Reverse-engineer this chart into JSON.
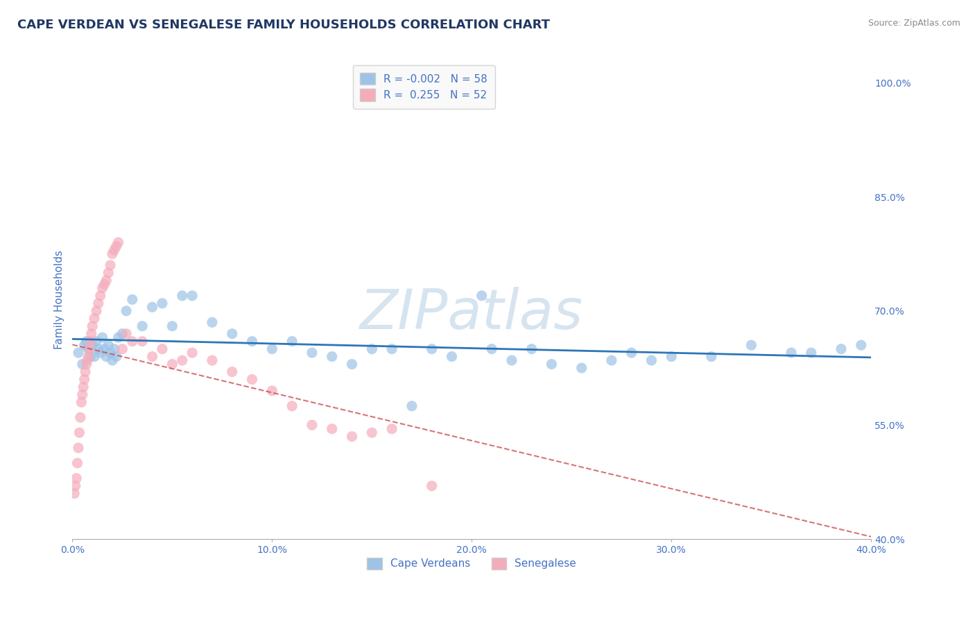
{
  "title": "CAPE VERDEAN VS SENEGALESE FAMILY HOUSEHOLDS CORRELATION CHART",
  "source": "Source: ZipAtlas.com",
  "ylabel": "Family Households",
  "yticks": [
    40.0,
    55.0,
    70.0,
    85.0,
    100.0
  ],
  "ytick_labels": [
    "40.0%",
    "55.0%",
    "70.0%",
    "85.0%",
    "100.0%"
  ],
  "xlim": [
    0.0,
    40.0
  ],
  "ylim": [
    40.0,
    103.0
  ],
  "r_blue": -0.002,
  "n_blue": 58,
  "r_pink": 0.255,
  "n_pink": 52,
  "legend_label_blue": "Cape Verdeans",
  "legend_label_pink": "Senegalese",
  "blue_color": "#9DC3E6",
  "pink_color": "#F4ACBB",
  "trendline_blue_color": "#2E75B6",
  "trendline_pink_color": "#C9454A",
  "background_color": "#FFFFFF",
  "grid_color": "#CCCCCC",
  "title_color": "#203864",
  "axis_label_color": "#4472C4",
  "watermark_color": "#D6E4F0",
  "blue_x": [
    0.3,
    0.5,
    0.6,
    0.7,
    0.8,
    0.9,
    1.0,
    1.1,
    1.2,
    1.3,
    1.4,
    1.5,
    1.6,
    1.7,
    1.8,
    1.9,
    2.0,
    2.1,
    2.2,
    2.3,
    2.5,
    2.7,
    3.0,
    3.5,
    4.0,
    4.5,
    5.0,
    5.5,
    6.0,
    7.0,
    8.0,
    9.0,
    10.0,
    11.0,
    12.0,
    13.0,
    14.0,
    15.0,
    16.0,
    17.0,
    18.0,
    19.0,
    20.5,
    21.0,
    22.0,
    23.0,
    24.0,
    25.5,
    27.0,
    28.0,
    29.0,
    30.0,
    32.0,
    34.0,
    36.0,
    37.0,
    38.5,
    39.5
  ],
  "blue_y": [
    64.5,
    63.0,
    65.5,
    66.0,
    65.0,
    64.0,
    65.5,
    64.0,
    66.0,
    65.0,
    64.5,
    66.5,
    65.0,
    64.0,
    65.5,
    64.5,
    63.5,
    65.0,
    64.0,
    66.5,
    67.0,
    70.0,
    71.5,
    68.0,
    70.5,
    71.0,
    68.0,
    72.0,
    72.0,
    68.5,
    67.0,
    66.0,
    65.0,
    66.0,
    64.5,
    64.0,
    63.0,
    65.0,
    65.0,
    57.5,
    65.0,
    64.0,
    72.0,
    65.0,
    63.5,
    65.0,
    63.0,
    62.5,
    63.5,
    64.5,
    63.5,
    64.0,
    64.0,
    65.5,
    64.5,
    64.5,
    65.0,
    65.5
  ],
  "pink_x": [
    0.1,
    0.15,
    0.2,
    0.25,
    0.3,
    0.35,
    0.4,
    0.45,
    0.5,
    0.55,
    0.6,
    0.65,
    0.7,
    0.75,
    0.8,
    0.85,
    0.9,
    0.95,
    1.0,
    1.1,
    1.2,
    1.3,
    1.4,
    1.5,
    1.6,
    1.7,
    1.8,
    1.9,
    2.0,
    2.1,
    2.2,
    2.3,
    2.5,
    2.7,
    3.0,
    3.5,
    4.0,
    4.5,
    5.0,
    5.5,
    6.0,
    7.0,
    8.0,
    9.0,
    10.0,
    11.0,
    12.0,
    13.0,
    14.0,
    15.0,
    16.0,
    18.0
  ],
  "pink_y": [
    46.0,
    47.0,
    48.0,
    50.0,
    52.0,
    54.0,
    56.0,
    58.0,
    59.0,
    60.0,
    61.0,
    62.0,
    63.0,
    63.5,
    64.0,
    65.0,
    66.0,
    67.0,
    68.0,
    69.0,
    70.0,
    71.0,
    72.0,
    73.0,
    73.5,
    74.0,
    75.0,
    76.0,
    77.5,
    78.0,
    78.5,
    79.0,
    65.0,
    67.0,
    66.0,
    66.0,
    64.0,
    65.0,
    63.0,
    63.5,
    64.5,
    63.5,
    62.0,
    61.0,
    59.5,
    57.5,
    55.0,
    54.5,
    53.5,
    54.0,
    54.5,
    47.0
  ]
}
